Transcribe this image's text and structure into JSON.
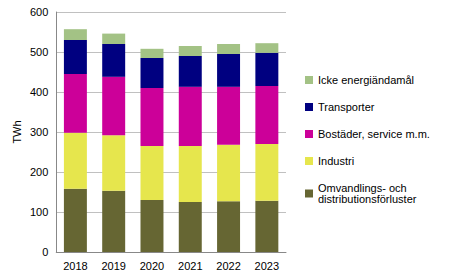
{
  "chart_data": {
    "type": "bar",
    "stacked": true,
    "grid": true,
    "legend": "right",
    "y_label": "TWh",
    "categories": [
      "2018",
      "2019",
      "2020",
      "2021",
      "2022",
      "2023"
    ],
    "ylim": [
      0,
      600
    ],
    "yticks": [
      0,
      100,
      200,
      300,
      400,
      500,
      600
    ],
    "series": [
      {
        "name": "Omvandlings- och distributionsförluster",
        "color": "#666633",
        "values": [
          158,
          153,
          130,
          125,
          127,
          128
        ]
      },
      {
        "name": "Industri",
        "color": "#e6e64d",
        "values": [
          140,
          139,
          135,
          140,
          141,
          142
        ]
      },
      {
        "name": "Bostäder, service m.m.",
        "color": "#cc0099",
        "values": [
          147,
          146,
          145,
          148,
          145,
          145
        ]
      },
      {
        "name": "Transporter",
        "color": "#000080",
        "values": [
          85,
          82,
          75,
          77,
          82,
          83
        ]
      },
      {
        "name": "Icke energiändamål",
        "color": "#a3c285",
        "values": [
          27,
          26,
          23,
          25,
          25,
          24
        ]
      }
    ]
  }
}
